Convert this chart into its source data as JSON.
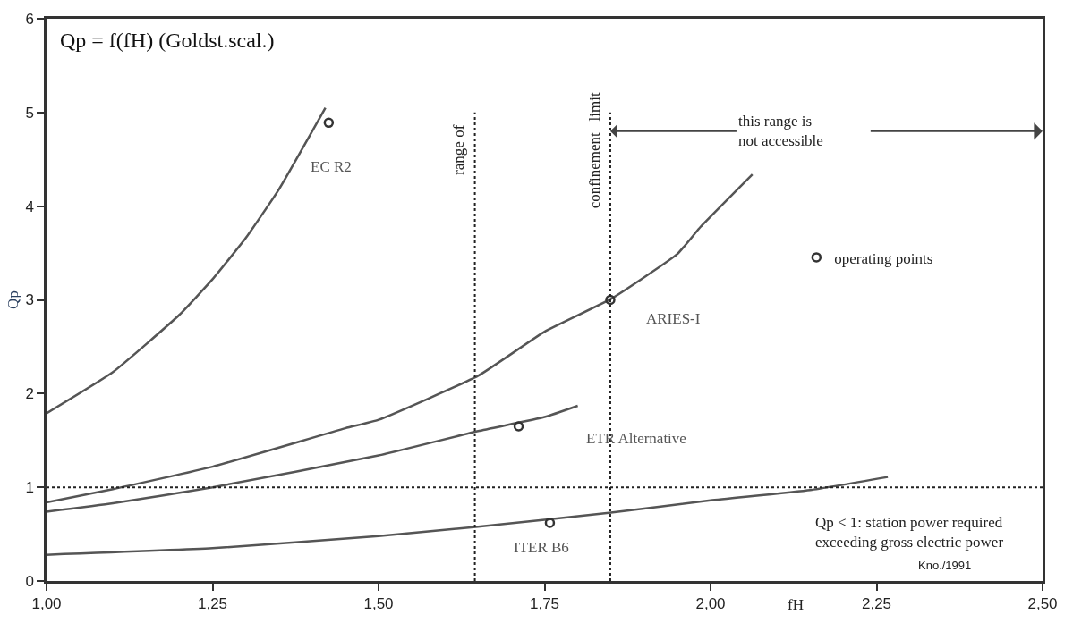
{
  "chart_data": {
    "type": "line",
    "title": "Qp = f(fH) (Goldst.scal.)",
    "xlabel": "fH",
    "ylabel": "Qp",
    "xlim": [
      1.0,
      2.5
    ],
    "ylim": [
      0,
      6
    ],
    "xticks": [
      {
        "value": 1.0,
        "label": "1,00"
      },
      {
        "value": 1.25,
        "label": "1,25"
      },
      {
        "value": 1.5,
        "label": "1,50"
      },
      {
        "value": 1.75,
        "label": "1,75"
      },
      {
        "value": 2.0,
        "label": "2,00"
      },
      {
        "value": 2.25,
        "label": "2,25"
      },
      {
        "value": 2.5,
        "label": "2,50"
      }
    ],
    "yticks": [
      0,
      1,
      2,
      3,
      4,
      5,
      6
    ],
    "grid": false,
    "legend": "right",
    "line_style": "solid",
    "series": [
      {
        "name": "EC R2",
        "color": "#555555",
        "marker": "none",
        "x": [
          1.0,
          1.1,
          1.2,
          1.25,
          1.3,
          1.35,
          1.42
        ],
        "values": [
          1.79,
          2.23,
          2.84,
          3.22,
          3.66,
          4.18,
          5.05
        ]
      },
      {
        "name": "ARIES-I",
        "color": "#555555",
        "marker": "none",
        "x": [
          1.0,
          1.1,
          1.25,
          1.45,
          1.5,
          1.65,
          1.75,
          1.85,
          1.95,
          1.985,
          2.063
        ],
        "values": [
          0.84,
          0.98,
          1.22,
          1.63,
          1.72,
          2.19,
          2.66,
          3.01,
          3.49,
          3.78,
          4.34
        ]
      },
      {
        "name": "ETR Alternative",
        "color": "#555555",
        "marker": "none",
        "x": [
          1.0,
          1.1,
          1.25,
          1.5,
          1.65,
          1.75,
          1.8
        ],
        "values": [
          0.74,
          0.83,
          1.0,
          1.34,
          1.6,
          1.75,
          1.87
        ]
      },
      {
        "name": "ITER B6",
        "color": "#555555",
        "marker": "none",
        "x": [
          1.0,
          1.25,
          1.5,
          1.65,
          1.85,
          2.0,
          2.15,
          2.267
        ],
        "values": [
          0.28,
          0.35,
          0.48,
          0.58,
          0.73,
          0.86,
          0.97,
          1.11
        ]
      },
      {
        "name": "operating points",
        "color": "#333333",
        "type": "scatter",
        "marker": "circle",
        "x": [
          1.425,
          1.849,
          1.711,
          1.758
        ],
        "values": [
          4.89,
          3.0,
          1.65,
          0.62
        ]
      }
    ],
    "ref_lines": [
      {
        "axis": "x",
        "value": 1.645,
        "label": "range of",
        "line_style": "dotted",
        "color": "#222222"
      },
      {
        "axis": "x",
        "value": 1.849,
        "label": "confinement   limit",
        "line_style": "dotted",
        "color": "#222222"
      },
      {
        "axis": "y",
        "value": 1,
        "label": null,
        "line_style": "dotted",
        "color": "#222222"
      }
    ],
    "annotations": [
      {
        "text": "this range is\nnot accessible",
        "x": 1.849,
        "y": 4.8
      },
      "Qp < 1: station power required\nexceeding gross electric power",
      "Kno./1991"
    ]
  }
}
